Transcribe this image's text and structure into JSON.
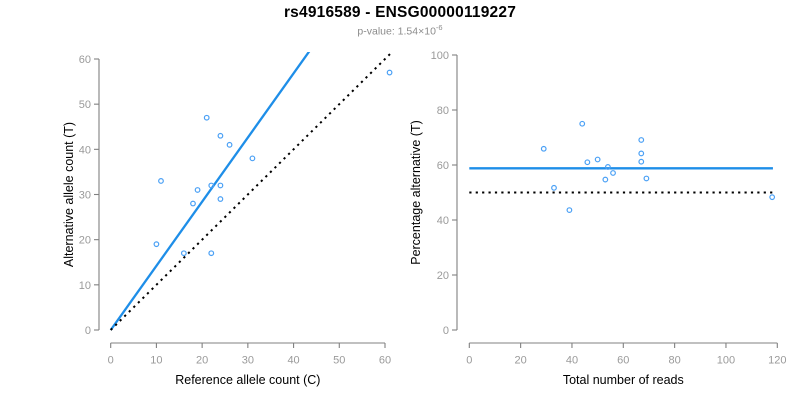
{
  "header": {
    "title": "rs4916589 - ENSG00000119227",
    "p_value_label": "p-value: 1.54×10",
    "p_value_exponent": "-6"
  },
  "colors": {
    "fit_line_blue": "#1e8ee8",
    "point_blue": "#4aa0f5",
    "identity_line_black": "#000000",
    "axis_line_gray": "#808080",
    "tick_label_gray": "#9a9a9a",
    "axis_title_black": "#000000",
    "subtitle_gray": "#8c8c8c",
    "background": "#ffffff"
  },
  "chart_data": [
    {
      "type": "scatter",
      "name": "allele-counts-scatter",
      "xlabel": "Reference allele count (C)",
      "ylabel": "Alternative allele count (T)",
      "xlim": [
        0,
        60
      ],
      "ylim": [
        0,
        60
      ],
      "xticks": [
        0,
        10,
        20,
        30,
        40,
        50,
        60
      ],
      "yticks": [
        0,
        10,
        20,
        30,
        40,
        50,
        60
      ],
      "grid": false,
      "points": [
        [
          10,
          19
        ],
        [
          11,
          33
        ],
        [
          16,
          17
        ],
        [
          18,
          28
        ],
        [
          19,
          31
        ],
        [
          21,
          47
        ],
        [
          22,
          17
        ],
        [
          22,
          32
        ],
        [
          24,
          29
        ],
        [
          24,
          32
        ],
        [
          24,
          43
        ],
        [
          26,
          41
        ],
        [
          31,
          38
        ],
        [
          61,
          57
        ]
      ],
      "lines": [
        {
          "name": "fit-line",
          "style": "solid",
          "color_key": "fit_line_blue",
          "x1": 0,
          "y1": 0,
          "x2": 44,
          "y2": 62.5
        },
        {
          "name": "identity-line",
          "style": "dotted",
          "color_key": "identity_line_black",
          "x1": 0,
          "y1": 0,
          "x2": 61.5,
          "y2": 61.5
        }
      ]
    },
    {
      "type": "scatter",
      "name": "percentage-vs-reads-scatter",
      "xlabel": "Total number of reads",
      "ylabel": "Percentage alternative (T)",
      "xlim": [
        0,
        120
      ],
      "ylim": [
        0,
        100
      ],
      "xticks": [
        0,
        20,
        40,
        60,
        80,
        100,
        120
      ],
      "yticks": [
        0,
        20,
        40,
        60,
        80,
        100
      ],
      "grid": false,
      "points": [
        [
          29,
          65.9
        ],
        [
          33,
          51.7
        ],
        [
          39,
          43.6
        ],
        [
          44,
          75
        ],
        [
          46,
          61
        ],
        [
          50,
          62
        ],
        [
          53,
          54.7
        ],
        [
          54,
          59.3
        ],
        [
          56,
          57.1
        ],
        [
          67,
          61.2
        ],
        [
          67,
          64.2
        ],
        [
          67,
          69.1
        ],
        [
          69,
          55.1
        ],
        [
          118,
          48.3
        ]
      ],
      "lines": [
        {
          "name": "mean-percentage-line",
          "style": "solid",
          "color_key": "fit_line_blue",
          "x1": 0,
          "y1": 58.8,
          "x2": 118.3,
          "y2": 58.8
        },
        {
          "name": "fifty-percent-line",
          "style": "dotted",
          "color_key": "identity_line_black",
          "x1": 0,
          "y1": 50,
          "x2": 118.3,
          "y2": 50
        }
      ]
    }
  ]
}
